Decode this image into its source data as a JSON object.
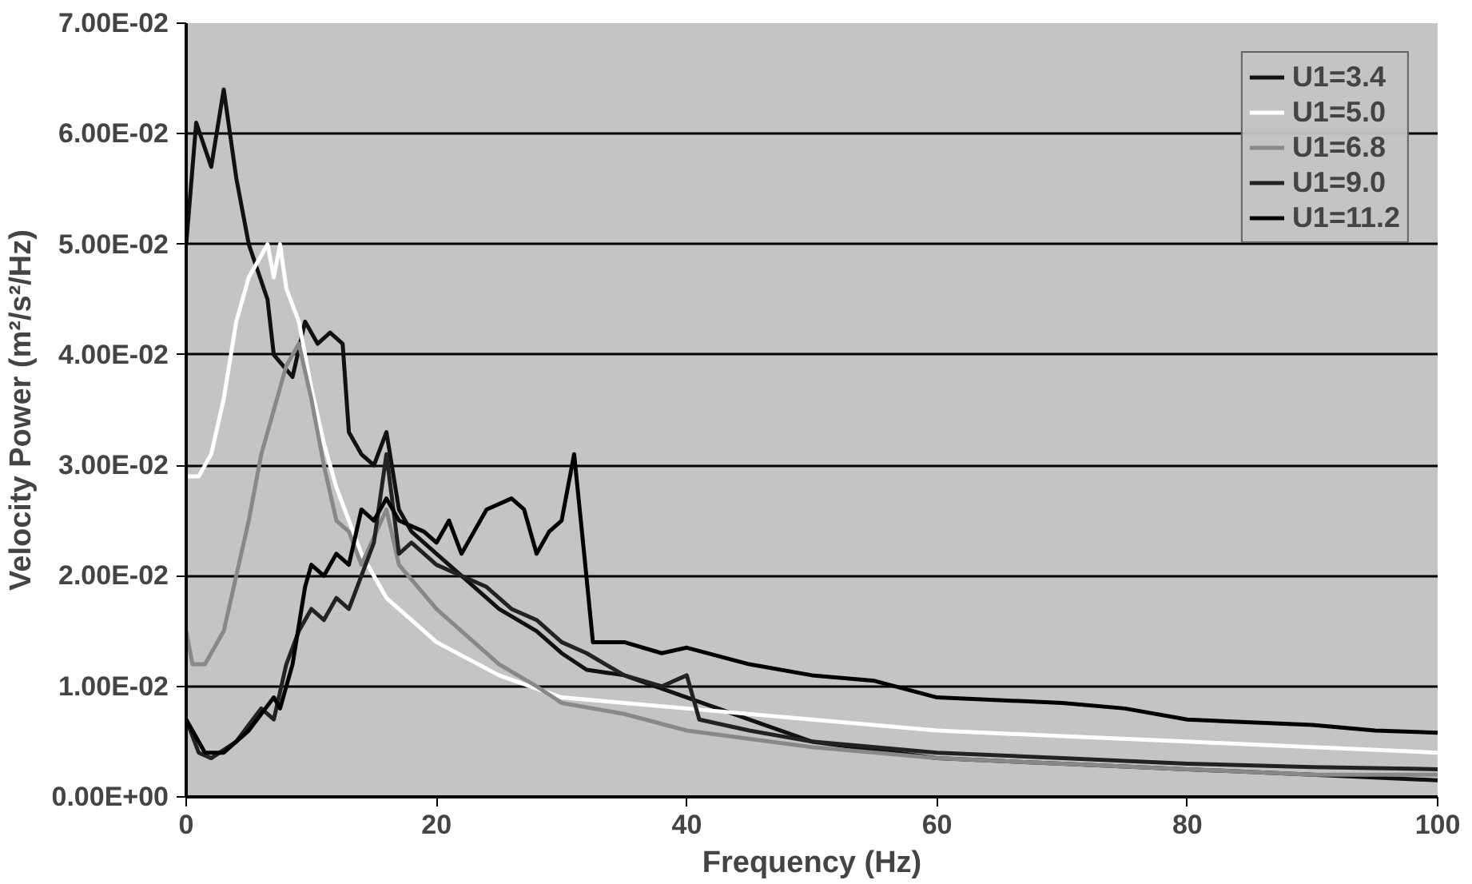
{
  "chart_data": {
    "type": "line",
    "xlabel": "Frequency (Hz)",
    "ylabel": "Velocity Power (m²/s²/Hz)",
    "xlim": [
      0,
      100
    ],
    "xticks": [
      0,
      20,
      40,
      60,
      80,
      100
    ],
    "ylim": [
      0,
      0.07
    ],
    "yticks": [
      {
        "value": 0,
        "label": "0.00E+00"
      },
      {
        "value": 0.01,
        "label": "1.00E-02"
      },
      {
        "value": 0.02,
        "label": "2.00E-02"
      },
      {
        "value": 0.03,
        "label": "3.00E-02"
      },
      {
        "value": 0.04,
        "label": "4.00E-02"
      },
      {
        "value": 0.05,
        "label": "5.00E-02"
      },
      {
        "value": 0.06,
        "label": "6.00E-02"
      },
      {
        "value": 0.07,
        "label": "7.00E-02"
      }
    ],
    "grid": "y",
    "legend": "top right",
    "marker": "none",
    "line_style": "solid",
    "series": [
      {
        "name": "U1=3.4",
        "color": "#111111",
        "x": [
          0,
          0.8,
          2,
          3,
          4,
          5,
          6.5,
          7,
          8.5,
          9.5,
          10.5,
          11.5,
          12.5,
          13,
          14,
          15,
          16,
          17,
          18,
          20,
          22,
          25,
          28,
          30,
          32,
          35,
          40,
          50,
          60,
          70,
          80,
          90,
          100
        ],
        "values": [
          0.05,
          0.061,
          0.057,
          0.064,
          0.056,
          0.05,
          0.045,
          0.04,
          0.038,
          0.043,
          0.041,
          0.042,
          0.041,
          0.033,
          0.031,
          0.03,
          0.033,
          0.026,
          0.024,
          0.022,
          0.02,
          0.017,
          0.015,
          0.013,
          0.0115,
          0.011,
          0.009,
          0.005,
          0.0035,
          0.003,
          0.0025,
          0.002,
          0.0015
        ]
      },
      {
        "name": "U1=5.0",
        "color": "#ffffff",
        "x": [
          0,
          1,
          2,
          3,
          4,
          5,
          6,
          6.5,
          7,
          7.5,
          8,
          9,
          10,
          11,
          12,
          13,
          14,
          15,
          16,
          18,
          20,
          25,
          30,
          35,
          40,
          50,
          60,
          70,
          80,
          90,
          100
        ],
        "values": [
          0.029,
          0.029,
          0.031,
          0.036,
          0.043,
          0.047,
          0.049,
          0.05,
          0.047,
          0.05,
          0.046,
          0.043,
          0.037,
          0.032,
          0.028,
          0.025,
          0.022,
          0.02,
          0.018,
          0.016,
          0.014,
          0.011,
          0.009,
          0.0085,
          0.008,
          0.007,
          0.006,
          0.0055,
          0.005,
          0.0045,
          0.004
        ]
      },
      {
        "name": "U1=6.8",
        "color": "#888888",
        "x": [
          0,
          0.5,
          1.5,
          3,
          4,
          5,
          6,
          7,
          8,
          9,
          10,
          11,
          12,
          13,
          14,
          16,
          17,
          20,
          22,
          25,
          28,
          30,
          35,
          40,
          50,
          60,
          70,
          80,
          90,
          100
        ],
        "values": [
          0.015,
          0.012,
          0.012,
          0.015,
          0.02,
          0.025,
          0.031,
          0.035,
          0.039,
          0.041,
          0.036,
          0.03,
          0.025,
          0.024,
          0.021,
          0.026,
          0.021,
          0.017,
          0.015,
          0.012,
          0.01,
          0.0085,
          0.0075,
          0.006,
          0.0045,
          0.0035,
          0.003,
          0.0025,
          0.002,
          0.002
        ]
      },
      {
        "name": "U1=9.0",
        "color": "#222222",
        "x": [
          0,
          1,
          2,
          4,
          6,
          7,
          8,
          9,
          10,
          11,
          12,
          13,
          14,
          15,
          16,
          17,
          18,
          20,
          22,
          24,
          26,
          28,
          30,
          32,
          35,
          38,
          40,
          41,
          45,
          50,
          60,
          70,
          80,
          90,
          100
        ],
        "values": [
          0.007,
          0.004,
          0.0035,
          0.005,
          0.008,
          0.007,
          0.012,
          0.015,
          0.017,
          0.016,
          0.018,
          0.017,
          0.02,
          0.023,
          0.031,
          0.022,
          0.023,
          0.021,
          0.02,
          0.019,
          0.017,
          0.016,
          0.014,
          0.013,
          0.011,
          0.01,
          0.011,
          0.007,
          0.006,
          0.005,
          0.004,
          0.0035,
          0.003,
          0.0027,
          0.0025
        ]
      },
      {
        "name": "U1=11.2",
        "color": "#000000",
        "x": [
          0,
          1.5,
          3,
          5,
          7,
          7.5,
          8.5,
          9.5,
          10,
          11,
          12,
          13,
          14,
          15,
          16,
          17,
          19,
          20,
          21,
          22,
          23,
          24,
          26,
          27,
          28,
          29,
          30,
          31,
          31.8,
          32.5,
          35,
          38,
          40,
          45,
          50,
          55,
          60,
          70,
          75,
          80,
          90,
          95,
          100
        ],
        "values": [
          0.007,
          0.004,
          0.004,
          0.006,
          0.009,
          0.008,
          0.012,
          0.019,
          0.021,
          0.02,
          0.022,
          0.021,
          0.026,
          0.025,
          0.027,
          0.025,
          0.024,
          0.023,
          0.025,
          0.022,
          0.024,
          0.026,
          0.027,
          0.026,
          0.022,
          0.024,
          0.025,
          0.031,
          0.022,
          0.014,
          0.014,
          0.013,
          0.0135,
          0.012,
          0.011,
          0.0105,
          0.009,
          0.0085,
          0.008,
          0.007,
          0.0065,
          0.006,
          0.0058
        ]
      }
    ]
  }
}
